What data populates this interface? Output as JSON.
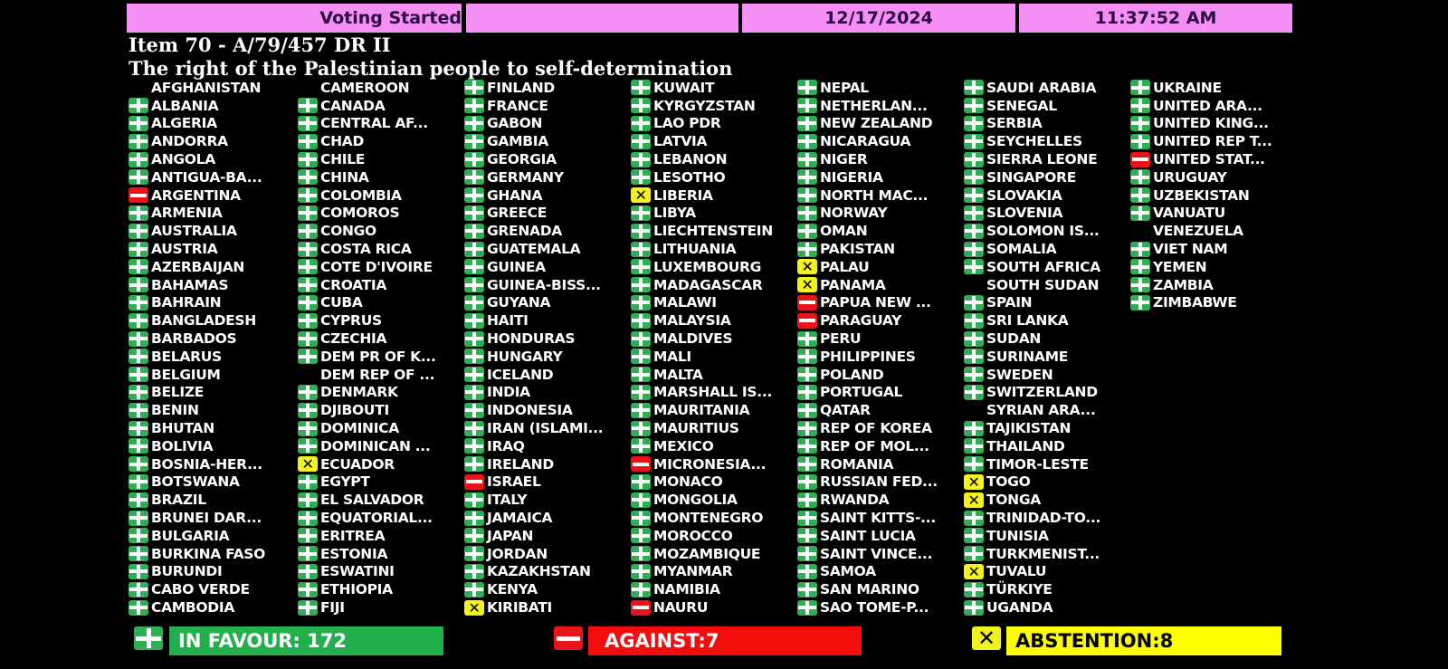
{
  "header": {
    "status": "Voting Started",
    "blank": "",
    "date": "12/17/2024",
    "time": "11:37:52 AM"
  },
  "item": {
    "title": "Item 70 - A/79/457 DR II",
    "subtitle": "The right of the Palestinian people to self-determination"
  },
  "vote_colors": {
    "Y": "#2fae55",
    "N": "#e8141a",
    "A": "#f2f21c"
  },
  "vote_icons": {
    "Y": "plus-icon",
    "N": "minus-icon",
    "A": "x-icon"
  },
  "columns": [
    [
      [
        "AFGHANISTAN",
        ""
      ],
      [
        "ALBANIA",
        "Y"
      ],
      [
        "ALGERIA",
        "Y"
      ],
      [
        "ANDORRA",
        "Y"
      ],
      [
        "ANGOLA",
        "Y"
      ],
      [
        "ANTIGUA-BA...",
        "Y"
      ],
      [
        "ARGENTINA",
        "N"
      ],
      [
        "ARMENIA",
        "Y"
      ],
      [
        "AUSTRALIA",
        "Y"
      ],
      [
        "AUSTRIA",
        "Y"
      ],
      [
        "AZERBAIJAN",
        "Y"
      ],
      [
        "BAHAMAS",
        "Y"
      ],
      [
        "BAHRAIN",
        "Y"
      ],
      [
        "BANGLADESH",
        "Y"
      ],
      [
        "BARBADOS",
        "Y"
      ],
      [
        "BELARUS",
        "Y"
      ],
      [
        "BELGIUM",
        "Y"
      ],
      [
        "BELIZE",
        "Y"
      ],
      [
        "BENIN",
        "Y"
      ],
      [
        "BHUTAN",
        "Y"
      ],
      [
        "BOLIVIA",
        "Y"
      ],
      [
        "BOSNIA-HER...",
        "Y"
      ],
      [
        "BOTSWANA",
        "Y"
      ],
      [
        "BRAZIL",
        "Y"
      ],
      [
        "BRUNEI DAR...",
        "Y"
      ],
      [
        "BULGARIA",
        "Y"
      ],
      [
        "BURKINA FASO",
        "Y"
      ],
      [
        "BURUNDI",
        "Y"
      ],
      [
        "CABO VERDE",
        "Y"
      ],
      [
        "CAMBODIA",
        "Y"
      ]
    ],
    [
      [
        "CAMEROON",
        ""
      ],
      [
        "CANADA",
        "Y"
      ],
      [
        "CENTRAL AF...",
        "Y"
      ],
      [
        "CHAD",
        "Y"
      ],
      [
        "CHILE",
        "Y"
      ],
      [
        "CHINA",
        "Y"
      ],
      [
        "COLOMBIA",
        "Y"
      ],
      [
        "COMOROS",
        "Y"
      ],
      [
        "CONGO",
        "Y"
      ],
      [
        "COSTA RICA",
        "Y"
      ],
      [
        "COTE D'IVOIRE",
        "Y"
      ],
      [
        "CROATIA",
        "Y"
      ],
      [
        "CUBA",
        "Y"
      ],
      [
        "CYPRUS",
        "Y"
      ],
      [
        "CZECHIA",
        "Y"
      ],
      [
        "DEM PR OF K...",
        "Y"
      ],
      [
        "DEM REP OF ...",
        ""
      ],
      [
        "DENMARK",
        "Y"
      ],
      [
        "DJIBOUTI",
        "Y"
      ],
      [
        "DOMINICA",
        "Y"
      ],
      [
        "DOMINICAN ...",
        "Y"
      ],
      [
        "ECUADOR",
        "A"
      ],
      [
        "EGYPT",
        "Y"
      ],
      [
        "EL SALVADOR",
        "Y"
      ],
      [
        "EQUATORIAL...",
        "Y"
      ],
      [
        "ERITREA",
        "Y"
      ],
      [
        "ESTONIA",
        "Y"
      ],
      [
        "ESWATINI",
        "Y"
      ],
      [
        "ETHIOPIA",
        "Y"
      ],
      [
        "FIJI",
        "Y"
      ]
    ],
    [
      [
        "FINLAND",
        "Y"
      ],
      [
        "FRANCE",
        "Y"
      ],
      [
        "GABON",
        "Y"
      ],
      [
        "GAMBIA",
        "Y"
      ],
      [
        "GEORGIA",
        "Y"
      ],
      [
        "GERMANY",
        "Y"
      ],
      [
        "GHANA",
        "Y"
      ],
      [
        "GREECE",
        "Y"
      ],
      [
        "GRENADA",
        "Y"
      ],
      [
        "GUATEMALA",
        "Y"
      ],
      [
        "GUINEA",
        "Y"
      ],
      [
        "GUINEA-BISS...",
        "Y"
      ],
      [
        "GUYANA",
        "Y"
      ],
      [
        "HAITI",
        "Y"
      ],
      [
        "HONDURAS",
        "Y"
      ],
      [
        "HUNGARY",
        "Y"
      ],
      [
        "ICELAND",
        "Y"
      ],
      [
        "INDIA",
        "Y"
      ],
      [
        "INDONESIA",
        "Y"
      ],
      [
        "IRAN (ISLAMI...",
        "Y"
      ],
      [
        "IRAQ",
        "Y"
      ],
      [
        "IRELAND",
        "Y"
      ],
      [
        "ISRAEL",
        "N"
      ],
      [
        "ITALY",
        "Y"
      ],
      [
        "JAMAICA",
        "Y"
      ],
      [
        "JAPAN",
        "Y"
      ],
      [
        "JORDAN",
        "Y"
      ],
      [
        "KAZAKHSTAN",
        "Y"
      ],
      [
        "KENYA",
        "Y"
      ],
      [
        "KIRIBATI",
        "A"
      ]
    ],
    [
      [
        "KUWAIT",
        "Y"
      ],
      [
        "KYRGYZSTAN",
        "Y"
      ],
      [
        "LAO PDR",
        "Y"
      ],
      [
        "LATVIA",
        "Y"
      ],
      [
        "LEBANON",
        "Y"
      ],
      [
        "LESOTHO",
        "Y"
      ],
      [
        "LIBERIA",
        "A"
      ],
      [
        "LIBYA",
        "Y"
      ],
      [
        "LIECHTENSTEIN",
        "Y"
      ],
      [
        "LITHUANIA",
        "Y"
      ],
      [
        "LUXEMBOURG",
        "Y"
      ],
      [
        "MADAGASCAR",
        "Y"
      ],
      [
        "MALAWI",
        "Y"
      ],
      [
        "MALAYSIA",
        "Y"
      ],
      [
        "MALDIVES",
        "Y"
      ],
      [
        "MALI",
        "Y"
      ],
      [
        "MALTA",
        "Y"
      ],
      [
        "MARSHALL IS...",
        "Y"
      ],
      [
        "MAURITANIA",
        "Y"
      ],
      [
        "MAURITIUS",
        "Y"
      ],
      [
        "MEXICO",
        "Y"
      ],
      [
        "MICRONESIA...",
        "N"
      ],
      [
        "MONACO",
        "Y"
      ],
      [
        "MONGOLIA",
        "Y"
      ],
      [
        "MONTENEGRO",
        "Y"
      ],
      [
        "MOROCCO",
        "Y"
      ],
      [
        "MOZAMBIQUE",
        "Y"
      ],
      [
        "MYANMAR",
        "Y"
      ],
      [
        "NAMIBIA",
        "Y"
      ],
      [
        "NAURU",
        "N"
      ]
    ],
    [
      [
        "NEPAL",
        "Y"
      ],
      [
        "NETHERLAN...",
        "Y"
      ],
      [
        "NEW ZEALAND",
        "Y"
      ],
      [
        "NICARAGUA",
        "Y"
      ],
      [
        "NIGER",
        "Y"
      ],
      [
        "NIGERIA",
        "Y"
      ],
      [
        "NORTH MAC...",
        "Y"
      ],
      [
        "NORWAY",
        "Y"
      ],
      [
        "OMAN",
        "Y"
      ],
      [
        "PAKISTAN",
        "Y"
      ],
      [
        "PALAU",
        "A"
      ],
      [
        "PANAMA",
        "A"
      ],
      [
        "PAPUA NEW ...",
        "N"
      ],
      [
        "PARAGUAY",
        "N"
      ],
      [
        "PERU",
        "Y"
      ],
      [
        "PHILIPPINES",
        "Y"
      ],
      [
        "POLAND",
        "Y"
      ],
      [
        "PORTUGAL",
        "Y"
      ],
      [
        "QATAR",
        "Y"
      ],
      [
        "REP OF KOREA",
        "Y"
      ],
      [
        "REP OF MOL...",
        "Y"
      ],
      [
        "ROMANIA",
        "Y"
      ],
      [
        "RUSSIAN FED...",
        "Y"
      ],
      [
        "RWANDA",
        "Y"
      ],
      [
        "SAINT KITTS-...",
        "Y"
      ],
      [
        "SAINT LUCIA",
        "Y"
      ],
      [
        "SAINT VINCE...",
        "Y"
      ],
      [
        "SAMOA",
        "Y"
      ],
      [
        "SAN MARINO",
        "Y"
      ],
      [
        "SAO TOME-P...",
        "Y"
      ]
    ],
    [
      [
        "SAUDI ARABIA",
        "Y"
      ],
      [
        "SENEGAL",
        "Y"
      ],
      [
        "SERBIA",
        "Y"
      ],
      [
        "SEYCHELLES",
        "Y"
      ],
      [
        "SIERRA LEONE",
        "Y"
      ],
      [
        "SINGAPORE",
        "Y"
      ],
      [
        "SLOVAKIA",
        "Y"
      ],
      [
        "SLOVENIA",
        "Y"
      ],
      [
        "SOLOMON IS...",
        "Y"
      ],
      [
        "SOMALIA",
        "Y"
      ],
      [
        "SOUTH AFRICA",
        "Y"
      ],
      [
        "SOUTH SUDAN",
        ""
      ],
      [
        "SPAIN",
        "Y"
      ],
      [
        "SRI LANKA",
        "Y"
      ],
      [
        "SUDAN",
        "Y"
      ],
      [
        "SURINAME",
        "Y"
      ],
      [
        "SWEDEN",
        "Y"
      ],
      [
        "SWITZERLAND",
        "Y"
      ],
      [
        "SYRIAN ARA...",
        ""
      ],
      [
        "TAJIKISTAN",
        "Y"
      ],
      [
        "THAILAND",
        "Y"
      ],
      [
        "TIMOR-LESTE",
        "Y"
      ],
      [
        "TOGO",
        "A"
      ],
      [
        "TONGA",
        "A"
      ],
      [
        "TRINIDAD-TO...",
        "Y"
      ],
      [
        "TUNISIA",
        "Y"
      ],
      [
        "TURKMENIST...",
        "Y"
      ],
      [
        "TUVALU",
        "A"
      ],
      [
        "TÜRKIYE",
        "Y"
      ],
      [
        "UGANDA",
        "Y"
      ]
    ],
    [
      [
        "UKRAINE",
        "Y"
      ],
      [
        "UNITED ARA...",
        "Y"
      ],
      [
        "UNITED KING...",
        "Y"
      ],
      [
        "UNITED REP T...",
        "Y"
      ],
      [
        "UNITED STAT...",
        "N"
      ],
      [
        "URUGUAY",
        "Y"
      ],
      [
        "UZBEKISTAN",
        "Y"
      ],
      [
        "VANUATU",
        "Y"
      ],
      [
        "VENEZUELA",
        ""
      ],
      [
        "VIET NAM",
        "Y"
      ],
      [
        "YEMEN",
        "Y"
      ],
      [
        "ZAMBIA",
        "Y"
      ],
      [
        "ZIMBABWE",
        "Y"
      ]
    ]
  ],
  "totals": {
    "in_favour": "IN FAVOUR: 172",
    "against": "AGAINST:7",
    "abstention": "ABSTENTION:8"
  }
}
